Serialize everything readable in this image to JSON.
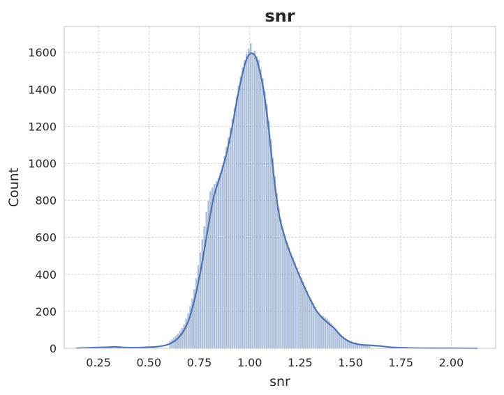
{
  "chart_data": {
    "type": "histogram",
    "title": "snr",
    "xlabel": "snr",
    "ylabel": "Count",
    "xlim": [
      0.08,
      2.22
    ],
    "ylim": [
      0,
      1740
    ],
    "x_ticks": [
      "0.25",
      "0.50",
      "0.75",
      "1.00",
      "1.25",
      "1.50",
      "1.75",
      "2.00"
    ],
    "y_ticks": [
      "0",
      "200",
      "400",
      "600",
      "800",
      "1000",
      "1200",
      "1400",
      "1600"
    ],
    "grid": true,
    "kde": true,
    "bin_width": 0.01,
    "bins": [
      [
        0.6,
        40
      ],
      [
        0.61,
        50
      ],
      [
        0.62,
        60
      ],
      [
        0.63,
        70
      ],
      [
        0.64,
        80
      ],
      [
        0.65,
        95
      ],
      [
        0.66,
        110
      ],
      [
        0.67,
        130
      ],
      [
        0.68,
        160
      ],
      [
        0.69,
        190
      ],
      [
        0.7,
        230
      ],
      [
        0.71,
        270
      ],
      [
        0.72,
        320
      ],
      [
        0.73,
        380
      ],
      [
        0.74,
        450
      ],
      [
        0.75,
        520
      ],
      [
        0.76,
        590
      ],
      [
        0.77,
        660
      ],
      [
        0.78,
        740
      ],
      [
        0.79,
        800
      ],
      [
        0.8,
        850
      ],
      [
        0.81,
        870
      ],
      [
        0.82,
        890
      ],
      [
        0.83,
        905
      ],
      [
        0.84,
        920
      ],
      [
        0.85,
        950
      ],
      [
        0.86,
        990
      ],
      [
        0.87,
        1040
      ],
      [
        0.88,
        1090
      ],
      [
        0.89,
        1140
      ],
      [
        0.9,
        1190
      ],
      [
        0.91,
        1240
      ],
      [
        0.92,
        1300
      ],
      [
        0.93,
        1360
      ],
      [
        0.94,
        1420
      ],
      [
        0.95,
        1470
      ],
      [
        0.96,
        1520
      ],
      [
        0.97,
        1560
      ],
      [
        0.98,
        1595
      ],
      [
        0.99,
        1620
      ],
      [
        1.0,
        1650
      ],
      [
        1.01,
        1600
      ],
      [
        1.02,
        1610
      ],
      [
        1.03,
        1580
      ],
      [
        1.04,
        1560
      ],
      [
        1.05,
        1510
      ],
      [
        1.06,
        1460
      ],
      [
        1.07,
        1390
      ],
      [
        1.08,
        1320
      ],
      [
        1.09,
        1230
      ],
      [
        1.1,
        1130
      ],
      [
        1.11,
        1030
      ],
      [
        1.12,
        930
      ],
      [
        1.13,
        840
      ],
      [
        1.14,
        760
      ],
      [
        1.15,
        700
      ],
      [
        1.16,
        650
      ],
      [
        1.17,
        610
      ],
      [
        1.18,
        575
      ],
      [
        1.19,
        545
      ],
      [
        1.2,
        515
      ],
      [
        1.21,
        490
      ],
      [
        1.22,
        462
      ],
      [
        1.23,
        435
      ],
      [
        1.24,
        410
      ],
      [
        1.25,
        385
      ],
      [
        1.26,
        360
      ],
      [
        1.27,
        335
      ],
      [
        1.28,
        310
      ],
      [
        1.29,
        285
      ],
      [
        1.3,
        265
      ],
      [
        1.31,
        245
      ],
      [
        1.32,
        225
      ],
      [
        1.33,
        205
      ],
      [
        1.34,
        190
      ],
      [
        1.35,
        180
      ],
      [
        1.36,
        175
      ],
      [
        1.37,
        168
      ],
      [
        1.38,
        160
      ],
      [
        1.39,
        148
      ],
      [
        1.4,
        135
      ],
      [
        1.41,
        120
      ],
      [
        1.42,
        108
      ],
      [
        1.43,
        96
      ],
      [
        1.44,
        85
      ],
      [
        1.45,
        74
      ],
      [
        1.46,
        64
      ],
      [
        1.47,
        55
      ],
      [
        1.48,
        47
      ],
      [
        1.49,
        40
      ],
      [
        1.5,
        34
      ],
      [
        1.51,
        30
      ],
      [
        1.52,
        27
      ],
      [
        1.53,
        24
      ],
      [
        1.54,
        22
      ],
      [
        1.55,
        20
      ],
      [
        1.56,
        19
      ],
      [
        1.57,
        18
      ],
      [
        1.58,
        17
      ],
      [
        1.59,
        16
      ]
    ],
    "kde_points": [
      [
        0.14,
        1
      ],
      [
        0.2,
        3
      ],
      [
        0.25,
        5
      ],
      [
        0.3,
        6
      ],
      [
        0.33,
        8
      ],
      [
        0.37,
        5
      ],
      [
        0.42,
        4
      ],
      [
        0.47,
        5
      ],
      [
        0.52,
        7
      ],
      [
        0.55,
        10
      ],
      [
        0.58,
        16
      ],
      [
        0.61,
        28
      ],
      [
        0.64,
        50
      ],
      [
        0.67,
        90
      ],
      [
        0.7,
        160
      ],
      [
        0.73,
        280
      ],
      [
        0.76,
        440
      ],
      [
        0.79,
        630
      ],
      [
        0.82,
        810
      ],
      [
        0.85,
        920
      ],
      [
        0.88,
        1030
      ],
      [
        0.91,
        1180
      ],
      [
        0.94,
        1360
      ],
      [
        0.97,
        1510
      ],
      [
        0.99,
        1575
      ],
      [
        1.01,
        1595
      ],
      [
        1.03,
        1575
      ],
      [
        1.05,
        1500
      ],
      [
        1.07,
        1390
      ],
      [
        1.09,
        1230
      ],
      [
        1.11,
        1030
      ],
      [
        1.13,
        840
      ],
      [
        1.15,
        700
      ],
      [
        1.18,
        580
      ],
      [
        1.21,
        490
      ],
      [
        1.24,
        410
      ],
      [
        1.27,
        335
      ],
      [
        1.3,
        265
      ],
      [
        1.33,
        205
      ],
      [
        1.36,
        165
      ],
      [
        1.39,
        135
      ],
      [
        1.42,
        108
      ],
      [
        1.45,
        70
      ],
      [
        1.48,
        45
      ],
      [
        1.51,
        30
      ],
      [
        1.55,
        20
      ],
      [
        1.6,
        16
      ],
      [
        1.65,
        12
      ],
      [
        1.7,
        6
      ],
      [
        1.75,
        4
      ],
      [
        1.8,
        2
      ],
      [
        1.9,
        1
      ],
      [
        2.0,
        1
      ],
      [
        2.13,
        0
      ]
    ]
  }
}
